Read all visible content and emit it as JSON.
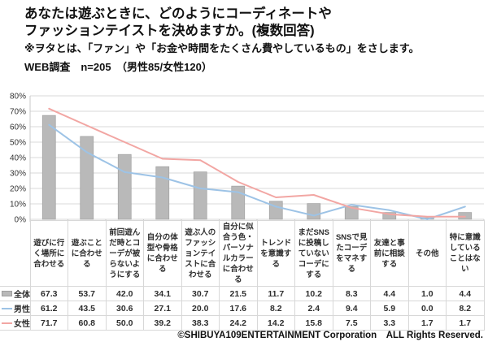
{
  "header": {
    "title_line1": "あなたは遊ぶときに、どのようにコーディネートや",
    "title_line2": "ファッションテイストを決めますか。(複数回答)",
    "note": "※ヲタとは、「ファン」や「お金や時間をたくさん費やしているもの」をさします。",
    "survey_info": "WEB調査　n=205　（男性85/女性120）"
  },
  "chart_data": {
    "type": "bar",
    "subtype": "bar-line-combo",
    "title": "",
    "xlabel": "",
    "ylabel": "",
    "ylim": [
      0,
      80
    ],
    "ytick_step": 10,
    "ytick_suffix": "%",
    "grid": true,
    "legend_position": "table-row-headers",
    "categories": [
      "遊びに行く場所に合わせる",
      "遊ぶことに合わせる",
      "前回遊んだ時とコーデが被らないようにする",
      "自分の体型や骨格に合わせる",
      "遊ぶ人のファッションテイストに合わせる",
      "自分に似合う色・パーソナルカラーに合わせる",
      "トレンドを意識する",
      "まだSNSに投稿していないコーデにする",
      "SNSで見たコーデをマネする",
      "友達と事前に相談する",
      "その他",
      "特に意識していることはない"
    ],
    "series": [
      {
        "name": "全体",
        "render": "bar",
        "color": "#b9b9b9",
        "values": [
          67.3,
          53.7,
          42.0,
          34.1,
          30.7,
          21.5,
          11.7,
          10.2,
          8.3,
          4.4,
          1.0,
          4.4
        ]
      },
      {
        "name": "男性",
        "render": "line",
        "color": "#9dc3e6",
        "values": [
          61.2,
          43.5,
          30.6,
          27.1,
          20.0,
          17.6,
          8.2,
          2.4,
          9.4,
          5.9,
          0.0,
          8.2
        ]
      },
      {
        "name": "女性",
        "render": "line",
        "color": "#f2a6a3",
        "values": [
          71.7,
          60.8,
          50.0,
          39.2,
          38.3,
          24.2,
          14.2,
          15.8,
          7.5,
          3.3,
          1.7,
          1.7
        ]
      }
    ]
  },
  "colors": {
    "bar_fill": "#b9b9b9",
    "bar_border": "#a3a3a3",
    "male_line": "#9dc3e6",
    "female_line": "#f2a6a3",
    "gridline": "#d9d9d9",
    "axis_line": "#c9c9c9",
    "tick_text": "#333333",
    "table_border": "#d8d8d8"
  },
  "footer": {
    "copyright": "©SHIBUYA109ENTERTAINMENT Corporation　ALL Rights Reserved."
  }
}
